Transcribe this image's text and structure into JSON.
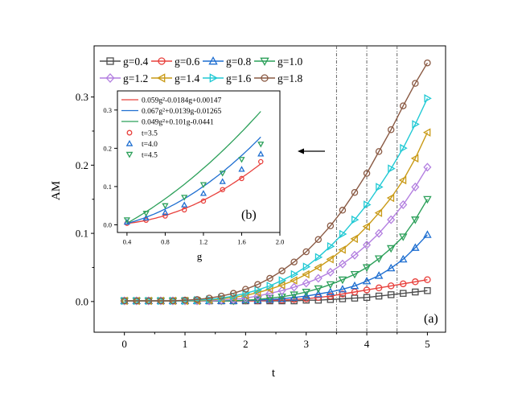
{
  "panel_label_main": "(a)",
  "panel_label_inset": "(b)",
  "arrow": "left-arrow",
  "chart_data": [
    {
      "id": "main",
      "type": "line",
      "xlabel": "t",
      "ylabel": "AM",
      "xlim": [
        -0.5,
        5.3
      ],
      "ylim": [
        -0.045,
        0.375
      ],
      "xticks": [
        0,
        1,
        2,
        3,
        4,
        5
      ],
      "xtick_labels": [
        "0",
        "1",
        "2",
        "3",
        "4",
        "5"
      ],
      "yticks": [
        0.0,
        0.1,
        0.2,
        0.3
      ],
      "ytick_labels": [
        "0.0",
        "0.1",
        "0.2",
        "0.3"
      ],
      "vlines": [
        3.5,
        4.0,
        4.5
      ],
      "legend_position": "top",
      "x": [
        0,
        0.2,
        0.4,
        0.6,
        0.8,
        1.0,
        1.2,
        1.4,
        1.6,
        1.8,
        2.0,
        2.2,
        2.4,
        2.6,
        2.8,
        3.0,
        3.2,
        3.4,
        3.6,
        3.8,
        4.0,
        4.2,
        4.4,
        4.6,
        4.8,
        5.0
      ],
      "series": [
        {
          "name": "g=0.4",
          "color": "#4d4d4d",
          "marker": "square",
          "values": [
            0.001,
            0.001,
            0.001,
            0.001,
            0.001,
            0.001,
            0.001,
            0.001,
            0.001,
            0.001,
            0.001,
            0.001,
            0.001,
            0.001,
            0.001,
            0.002,
            0.002,
            0.003,
            0.004,
            0.005,
            0.006,
            0.008,
            0.01,
            0.012,
            0.014,
            0.016
          ]
        },
        {
          "name": "g=0.6",
          "color": "#e8403c",
          "marker": "circle",
          "values": [
            0.001,
            0.001,
            0.001,
            0.001,
            0.001,
            0.001,
            0.001,
            0.001,
            0.001,
            0.001,
            0.001,
            0.001,
            0.002,
            0.002,
            0.003,
            0.004,
            0.006,
            0.008,
            0.011,
            0.014,
            0.017,
            0.02,
            0.023,
            0.026,
            0.029,
            0.032
          ]
        },
        {
          "name": "g=0.8",
          "color": "#1f6fd1",
          "marker": "triangle-up",
          "values": [
            0.001,
            0.001,
            0.001,
            0.001,
            0.001,
            0.001,
            0.001,
            0.001,
            0.001,
            0.001,
            0.002,
            0.002,
            0.003,
            0.004,
            0.006,
            0.008,
            0.011,
            0.014,
            0.018,
            0.023,
            0.03,
            0.038,
            0.049,
            0.062,
            0.079,
            0.098
          ]
        },
        {
          "name": "g=1.0",
          "color": "#2ca05a",
          "marker": "triangle-down",
          "values": [
            0.001,
            0.001,
            0.001,
            0.001,
            0.001,
            0.001,
            0.001,
            0.001,
            0.001,
            0.001,
            0.002,
            0.003,
            0.005,
            0.007,
            0.01,
            0.014,
            0.019,
            0.025,
            0.032,
            0.04,
            0.05,
            0.063,
            0.078,
            0.095,
            0.12,
            0.15
          ]
        },
        {
          "name": "g=1.2",
          "color": "#b37fe0",
          "marker": "diamond",
          "values": [
            0.001,
            0.001,
            0.001,
            0.001,
            0.001,
            0.001,
            0.001,
            0.001,
            0.002,
            0.003,
            0.005,
            0.008,
            0.012,
            0.016,
            0.021,
            0.027,
            0.034,
            0.043,
            0.055,
            0.068,
            0.083,
            0.1,
            0.12,
            0.142,
            0.168,
            0.197
          ]
        },
        {
          "name": "g=1.4",
          "color": "#c99a16",
          "marker": "triangle-left",
          "values": [
            0.001,
            0.001,
            0.001,
            0.001,
            0.001,
            0.001,
            0.001,
            0.002,
            0.004,
            0.006,
            0.009,
            0.013,
            0.018,
            0.024,
            0.031,
            0.04,
            0.05,
            0.062,
            0.076,
            0.092,
            0.11,
            0.13,
            0.152,
            0.178,
            0.21,
            0.248
          ]
        },
        {
          "name": "g=1.6",
          "color": "#20c9d4",
          "marker": "triangle-right",
          "values": [
            0.001,
            0.001,
            0.001,
            0.001,
            0.001,
            0.001,
            0.002,
            0.003,
            0.005,
            0.008,
            0.012,
            0.017,
            0.023,
            0.031,
            0.04,
            0.051,
            0.065,
            0.081,
            0.099,
            0.12,
            0.142,
            0.168,
            0.195,
            0.225,
            0.26,
            0.298
          ]
        },
        {
          "name": "g=1.8",
          "color": "#8a5a44",
          "marker": "circle",
          "values": [
            0.001,
            0.001,
            0.001,
            0.001,
            0.001,
            0.002,
            0.003,
            0.005,
            0.008,
            0.012,
            0.018,
            0.025,
            0.034,
            0.045,
            0.058,
            0.073,
            0.091,
            0.111,
            0.134,
            0.16,
            0.188,
            0.22,
            0.252,
            0.287,
            0.32,
            0.35
          ]
        }
      ]
    },
    {
      "id": "inset",
      "type": "scatter",
      "xlabel": "g",
      "ylabel": "",
      "xlim": [
        0.3,
        2.0
      ],
      "ylim": [
        -0.02,
        0.35
      ],
      "xticks": [
        0.4,
        0.8,
        1.2,
        1.6,
        2.0
      ],
      "xtick_labels": [
        "0.4",
        "0.8",
        "1.2",
        "1.6",
        "2.0"
      ],
      "yticks": [
        0.0,
        0.1,
        0.2,
        0.3
      ],
      "ytick_labels": [
        "0.0",
        "0.1",
        "0.2",
        "0.3"
      ],
      "legend_position": "top-left",
      "fits": [
        {
          "name": "0.059g²-0.0184g+0.00147",
          "color": "#e8403c",
          "a": 0.059,
          "b": -0.0184,
          "c": 0.00147
        },
        {
          "name": "0.067g²+0.0139g-0.01265",
          "color": "#1f6fd1",
          "a": 0.067,
          "b": 0.0139,
          "c": -0.01265
        },
        {
          "name": "0.049g²+0.101g-0.0441",
          "color": "#2ca05a",
          "a": 0.049,
          "b": 0.101,
          "c": -0.0441
        }
      ],
      "x": [
        0.4,
        0.6,
        0.8,
        1.0,
        1.2,
        1.4,
        1.6,
        1.8
      ],
      "series": [
        {
          "name": "t=3.5",
          "color": "#e8403c",
          "marker": "circle",
          "values": [
            0.004,
            0.012,
            0.023,
            0.039,
            0.062,
            0.092,
            0.121,
            0.165
          ]
        },
        {
          "name": "t=4.0",
          "color": "#1f6fd1",
          "marker": "triangle-up",
          "values": [
            0.007,
            0.018,
            0.032,
            0.052,
            0.082,
            0.113,
            0.145,
            0.185
          ]
        },
        {
          "name": "t=4.5",
          "color": "#2ca05a",
          "marker": "triangle-down",
          "values": [
            0.013,
            0.03,
            0.05,
            0.072,
            0.105,
            0.135,
            0.171,
            0.211
          ]
        }
      ]
    }
  ]
}
